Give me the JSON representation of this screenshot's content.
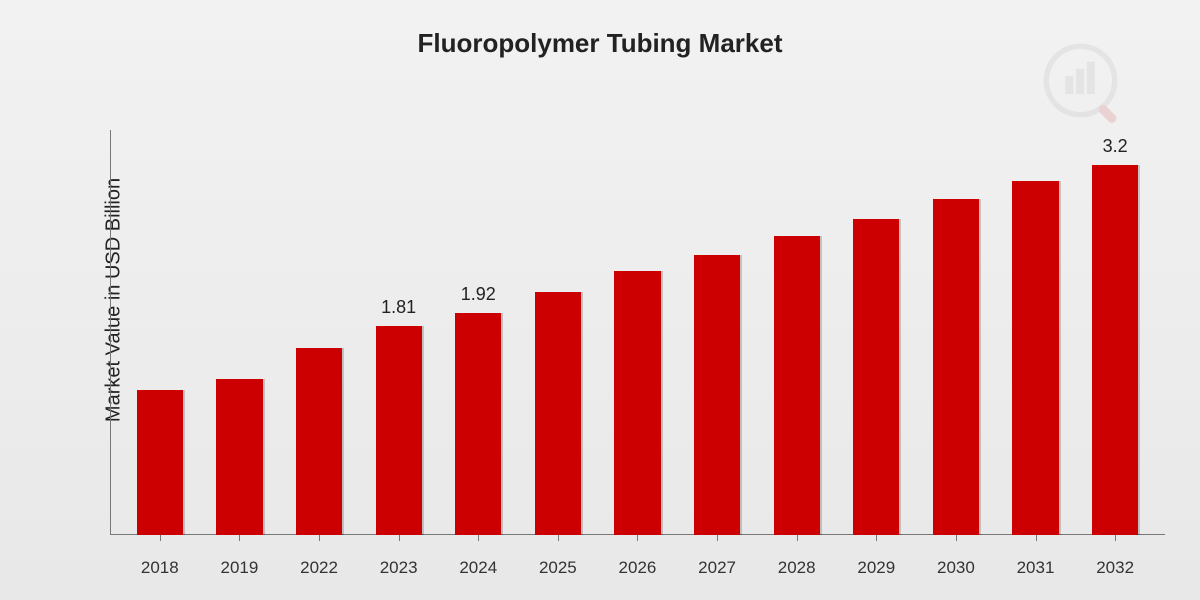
{
  "title": "Fluoropolymer Tubing Market",
  "y_axis_label": "Market Value in USD Billion",
  "chart": {
    "type": "bar",
    "bar_color": "#cc0000",
    "background_gradient": [
      "#f2f2f2",
      "#e8e8e8"
    ],
    "axis_color": "#777777",
    "title_fontsize": 26,
    "ylabel_fontsize": 20,
    "xlabel_fontsize": 17,
    "bar_label_fontsize": 18,
    "bar_width_ratio": 0.58,
    "y_max": 3.5,
    "categories": [
      "2018",
      "2019",
      "2022",
      "2023",
      "2024",
      "2025",
      "2026",
      "2027",
      "2028",
      "2029",
      "2030",
      "2031",
      "2032"
    ],
    "values": [
      1.25,
      1.35,
      1.62,
      1.81,
      1.92,
      2.1,
      2.28,
      2.42,
      2.58,
      2.73,
      2.9,
      3.06,
      3.2
    ],
    "value_labels": [
      "",
      "",
      "",
      "1.81",
      "1.92",
      "",
      "",
      "",
      "",
      "",
      "",
      "",
      "3.2"
    ]
  },
  "watermark": {
    "bar_color": "#8a8a8a",
    "circle_color": "#8a8a8a",
    "handle_color": "#c00000"
  }
}
